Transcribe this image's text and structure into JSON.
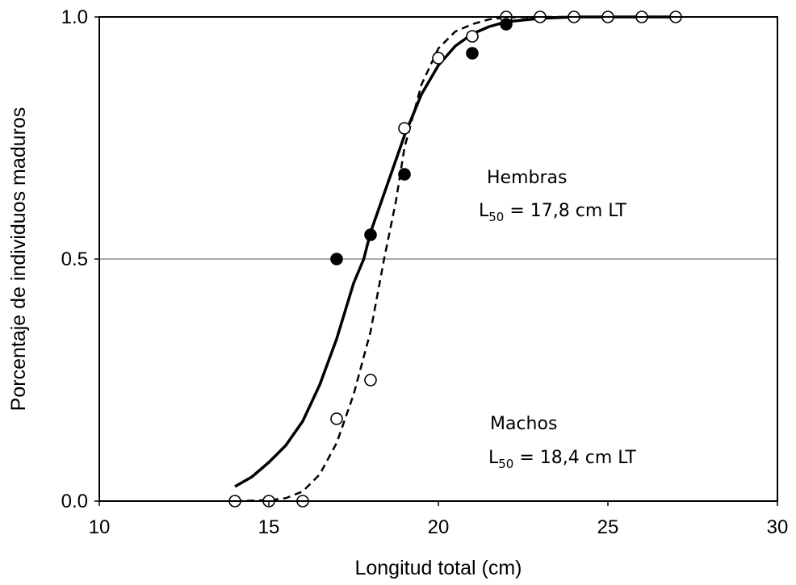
{
  "chart_data": {
    "type": "scatter",
    "xlabel": "Longitud total (cm)",
    "ylabel": "Porcentaje de individuos maduros",
    "xlim": [
      10,
      30
    ],
    "ylim": [
      0,
      1
    ],
    "x_ticks": [
      10,
      15,
      20,
      25,
      30
    ],
    "y_ticks": [
      0,
      0.5,
      1
    ],
    "x_tick_labels": [
      "10",
      "15",
      "20",
      "25",
      "30"
    ],
    "y_tick_labels": [
      "0.0",
      "0.5",
      "1.0"
    ],
    "grid": "horizontal",
    "series": [
      {
        "marker": "filled-circle",
        "color": "#000000",
        "points": [
          [
            17,
            0.5
          ],
          [
            18,
            0.55
          ],
          [
            19,
            0.675
          ],
          [
            21,
            0.925
          ],
          [
            22,
            0.985
          ]
        ]
      },
      {
        "marker": "open-circle",
        "color": "#000000",
        "points": [
          [
            14,
            0.0
          ],
          [
            15,
            0.0
          ],
          [
            16,
            0.0
          ],
          [
            17,
            0.17
          ],
          [
            18,
            0.25
          ],
          [
            19,
            0.77
          ],
          [
            20,
            0.915
          ],
          [
            21,
            0.96
          ],
          [
            22,
            1.0
          ],
          [
            23,
            1.0
          ],
          [
            24,
            1.0
          ],
          [
            25,
            1.0
          ],
          [
            26,
            1.0
          ],
          [
            27,
            1.0
          ]
        ]
      }
    ],
    "curves": [
      {
        "style": "solid",
        "points": [
          [
            14,
            0.03
          ],
          [
            14.5,
            0.05
          ],
          [
            15,
            0.08
          ],
          [
            15.5,
            0.115
          ],
          [
            16,
            0.165
          ],
          [
            16.5,
            0.24
          ],
          [
            17,
            0.335
          ],
          [
            17.5,
            0.45
          ],
          [
            17.8,
            0.5
          ],
          [
            18,
            0.555
          ],
          [
            18.5,
            0.655
          ],
          [
            19,
            0.755
          ],
          [
            19.5,
            0.84
          ],
          [
            20,
            0.9
          ],
          [
            20.5,
            0.94
          ],
          [
            21,
            0.965
          ],
          [
            21.5,
            0.98
          ],
          [
            22,
            0.99
          ],
          [
            23,
            0.997
          ],
          [
            24,
            1.0
          ],
          [
            27,
            1.0
          ]
        ]
      },
      {
        "style": "dashed",
        "points": [
          [
            14,
            0.0
          ],
          [
            15,
            0.002
          ],
          [
            15.5,
            0.006
          ],
          [
            16,
            0.02
          ],
          [
            16.5,
            0.055
          ],
          [
            17,
            0.12
          ],
          [
            17.5,
            0.22
          ],
          [
            18,
            0.35
          ],
          [
            18.4,
            0.5
          ],
          [
            18.75,
            0.62
          ],
          [
            19,
            0.73
          ],
          [
            19.5,
            0.86
          ],
          [
            20,
            0.935
          ],
          [
            20.5,
            0.97
          ],
          [
            21,
            0.985
          ],
          [
            21.5,
            0.995
          ],
          [
            22,
            0.999
          ],
          [
            23,
            1.0
          ],
          [
            27,
            1.0
          ]
        ]
      }
    ],
    "annotations": [
      {
        "label": "Hembras",
        "value_prefix": "L",
        "value_sub": "50",
        "value_rest": " = 17,8 cm LT"
      },
      {
        "label": "Machos",
        "value_prefix": "L",
        "value_sub": "50",
        "value_rest": " = 18,4 cm LT"
      }
    ]
  }
}
